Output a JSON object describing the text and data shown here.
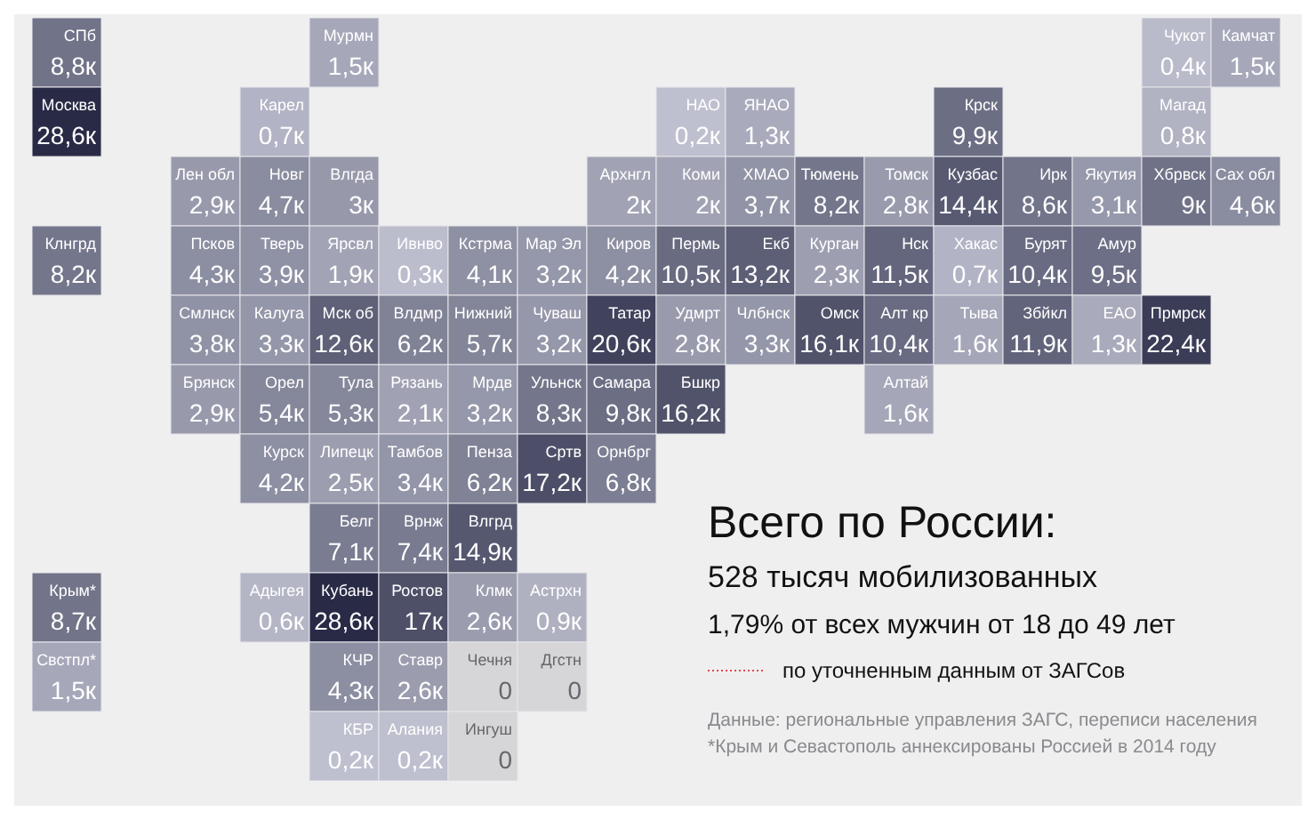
{
  "chart_data": {
    "type": "other",
    "title": "Всего по России:",
    "annotations": [
      "528 тысяч мобилизованных",
      "1,79% от всех мужчин от 18 до 49 лет",
      "по уточненным данным от ЗАГСов",
      "Данные: региональные управления ЗАГС, переписи населения",
      "*Крым и Севастополь аннексированы Россией в 2014 году"
    ],
    "categories": [
      "СПб",
      "Мурмн",
      "Чукот",
      "Камчат",
      "Москва",
      "Карел",
      "НАО",
      "ЯНАО",
      "Крск",
      "Магад",
      "Лен обл",
      "Новг",
      "Влгда",
      "Архнгл",
      "Коми",
      "ХМАО",
      "Тюмень",
      "Томск",
      "Кузбас",
      "Ирк",
      "Якутия",
      "Хбрвск",
      "Сах обл",
      "Клнгрд",
      "Псков",
      "Тверь",
      "Ярсвл",
      "Ивнво",
      "Кстрма",
      "Мар Эл",
      "Киров",
      "Пермь",
      "Екб",
      "Курган",
      "Нск",
      "Хакас",
      "Бурят",
      "Амур",
      "Смлнск",
      "Калуга",
      "Мск об",
      "Влдмр",
      "Нижний",
      "Чуваш",
      "Татар",
      "Удмрт",
      "Члбнск",
      "Омск",
      "Алт кр",
      "Тыва",
      "Збйкл",
      "ЕАО",
      "Прмрск",
      "Брянск",
      "Орел",
      "Тула",
      "Рязань",
      "Мрдв",
      "Ульнск",
      "Самара",
      "Бшкр",
      "Алтай",
      "Курск",
      "Липецк",
      "Тамбов",
      "Пенза",
      "Сртв",
      "Орнбрг",
      "Белг",
      "Врнж",
      "Влгрд",
      "Крым*",
      "Адыгея",
      "Кубань",
      "Ростов",
      "Клмк",
      "Астрхн",
      "Свстпл*",
      "КЧР",
      "Ставр",
      "Чечня",
      "Дгстн",
      "КБР",
      "Алания",
      "Ингуш"
    ],
    "values": [
      8.8,
      1.5,
      0.4,
      1.5,
      28.6,
      0.7,
      0.2,
      1.3,
      9.9,
      0.8,
      2.9,
      4.7,
      3,
      2,
      2,
      3.7,
      8.2,
      2.8,
      14.4,
      8.6,
      3.1,
      9,
      4.6,
      8.2,
      4.3,
      3.9,
      1.9,
      0.3,
      4.1,
      3.2,
      4.2,
      10.5,
      13.2,
      2.3,
      11.5,
      0.7,
      10.4,
      9.5,
      3.8,
      3.3,
      12.6,
      6.2,
      5.7,
      3.2,
      20.6,
      2.8,
      3.3,
      16.1,
      10.4,
      1.6,
      11.9,
      1.3,
      22.4,
      2.9,
      5.4,
      5.3,
      2.1,
      3.2,
      8.3,
      9.8,
      16.2,
      1.6,
      4.2,
      2.5,
      3.4,
      6.2,
      17.2,
      6.8,
      7.1,
      7.4,
      14.9,
      8.7,
      0.6,
      28.6,
      17,
      2.6,
      0.9,
      1.5,
      4.3,
      2.6,
      0,
      0,
      0.2,
      0.2,
      0
    ],
    "value_labels": [
      "8,8к",
      "1,5к",
      "0,4к",
      "1,5к",
      "28,6к",
      "0,7к",
      "0,2к",
      "1,3к",
      "9,9к",
      "0,8к",
      "2,9к",
      "4,7к",
      "3к",
      "2к",
      "2к",
      "3,7к",
      "8,2к",
      "2,8к",
      "14,4к",
      "8,6к",
      "3,1к",
      "9к",
      "4,6к",
      "8,2к",
      "4,3к",
      "3,9к",
      "1,9к",
      "0,3к",
      "4,1к",
      "3,2к",
      "4,2к",
      "10,5к",
      "13,2к",
      "2,3к",
      "11,5к",
      "0,7к",
      "10,4к",
      "9,5к",
      "3,8к",
      "3,3к",
      "12,6к",
      "6,2к",
      "5,7к",
      "3,2к",
      "20,6к",
      "2,8к",
      "3,3к",
      "16,1к",
      "10,4к",
      "1,6к",
      "11,9к",
      "1,3к",
      "22,4к",
      "2,9к",
      "5,4к",
      "5,3к",
      "2,1к",
      "3,2к",
      "8,3к",
      "9,8к",
      "16,2к",
      "1,6к",
      "4,2к",
      "2,5к",
      "3,4к",
      "6,2к",
      "17,2к",
      "6,8к",
      "7,1к",
      "7,4к",
      "14,9к",
      "8,7к",
      "0,6к",
      "28,6к",
      "17к",
      "2,6к",
      "0,9к",
      "1,5к",
      "4,3к",
      "2,6к",
      "0",
      "0",
      "0,2к",
      "0,2к",
      "0"
    ]
  }
}
